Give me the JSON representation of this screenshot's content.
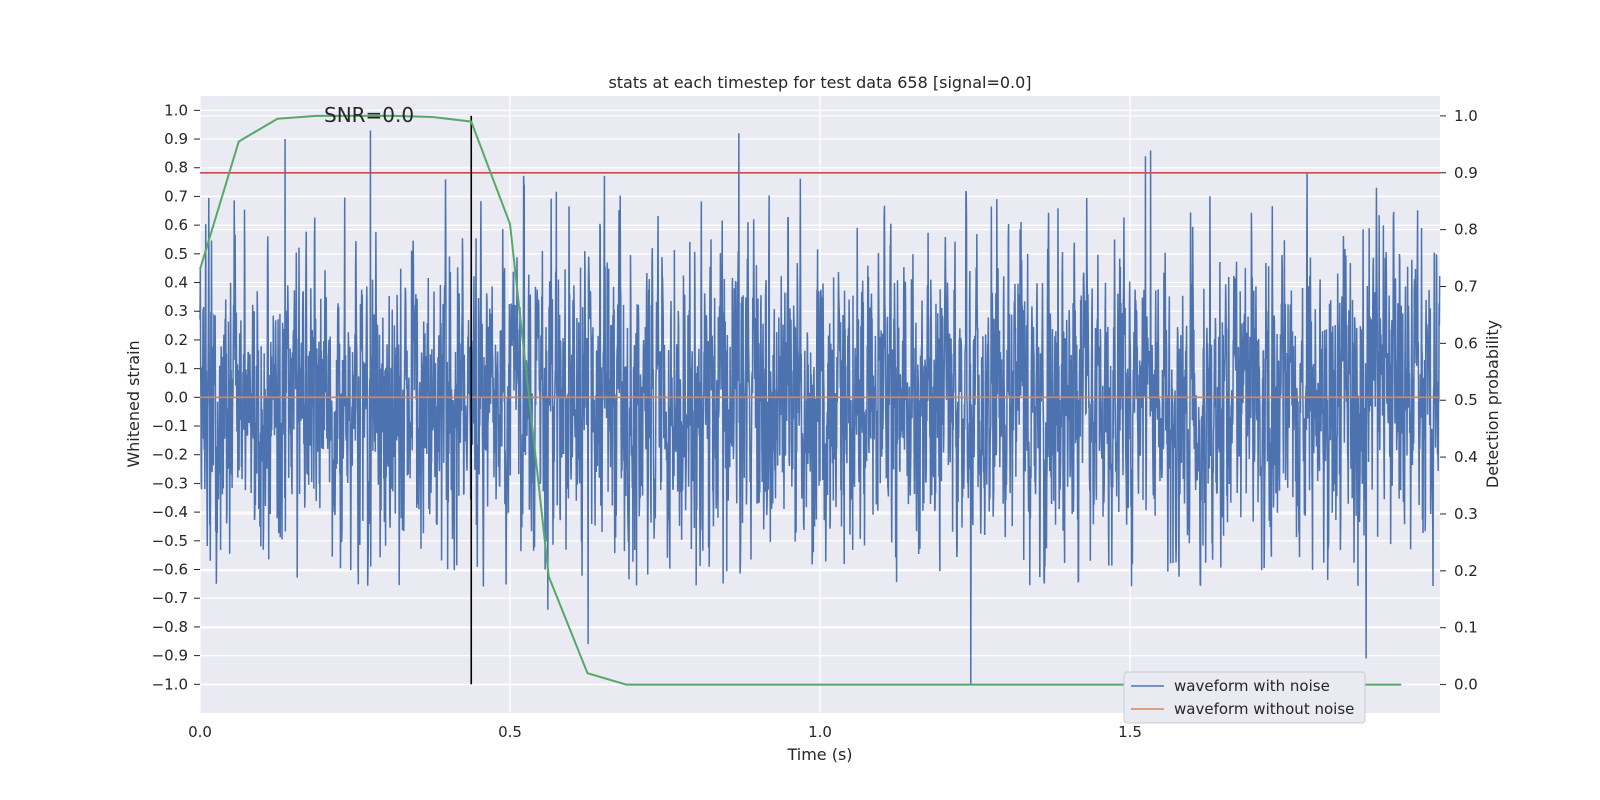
{
  "chart_data": {
    "type": "line",
    "title": "stats at each timestep for test data 658 [signal=0.0]",
    "xlabel": "Time (s)",
    "ylabel": "Whitened strain",
    "y2label": "Detection probability",
    "xlim": [
      0.0,
      2.0
    ],
    "ylim": [
      -1.1,
      1.05
    ],
    "y2lim": [
      -0.05,
      1.035
    ],
    "xticks": [
      0.0,
      0.5,
      1.0,
      1.5
    ],
    "xtick_labels": [
      "0.0",
      "0.5",
      "1.0",
      "1.5"
    ],
    "yticks": [
      1.0,
      0.9,
      0.8,
      0.7,
      0.6,
      0.5,
      0.4,
      0.3,
      0.2,
      0.1,
      0.0,
      -0.1,
      -0.2,
      -0.3,
      -0.4,
      -0.5,
      -0.6,
      -0.7,
      -0.8,
      -0.9,
      -1.0
    ],
    "ytick_labels": [
      "1.0",
      "0.9",
      "0.8",
      "0.7",
      "0.6",
      "0.5",
      "0.4",
      "0.3",
      "0.2",
      "0.1",
      "0.0",
      "−0.1",
      "−0.2",
      "−0.3",
      "−0.4",
      "−0.5",
      "−0.6",
      "−0.7",
      "−0.8",
      "−0.9",
      "−1.0"
    ],
    "y2ticks": [
      1.0,
      0.9,
      0.8,
      0.7,
      0.6,
      0.5,
      0.4,
      0.3,
      0.2,
      0.1,
      0.0
    ],
    "y2tick_labels": [
      "1.0",
      "0.9",
      "0.8",
      "0.7",
      "0.6",
      "0.5",
      "0.4",
      "0.3",
      "0.2",
      "0.1",
      "0.0"
    ],
    "annotation": "SNR=0.0",
    "annotation_at": {
      "x": 0.2,
      "y": 0.96
    },
    "series": [
      {
        "name": "waveform with noise",
        "color": "#4c72b0",
        "axis": "left",
        "sample_rate_hz": 2048,
        "seed": 658,
        "noise_std": 0.26,
        "spikes": [
          {
            "t": 0.275,
            "v": 0.93
          },
          {
            "t": 0.137,
            "v": 0.9
          },
          {
            "t": 0.869,
            "v": 0.92
          },
          {
            "t": 1.533,
            "v": 0.86
          },
          {
            "t": 1.243,
            "v": -1.0
          },
          {
            "t": 1.881,
            "v": -0.91
          },
          {
            "t": 0.626,
            "v": -0.86
          },
          {
            "t": 0.561,
            "v": -0.74
          },
          {
            "t": 1.525,
            "v": 0.84
          }
        ]
      },
      {
        "name": "waveform without noise",
        "color": "#dd8452",
        "axis": "left",
        "x": [
          0.0,
          2.0
        ],
        "y": [
          0.0,
          0.0
        ]
      },
      {
        "name": "detection probability",
        "color": "#55a868",
        "axis": "right",
        "x": [
          0.0,
          0.0625,
          0.125,
          0.1875,
          0.25,
          0.3125,
          0.375,
          0.4375,
          0.5,
          0.5625,
          0.625,
          0.6875,
          0.75,
          0.8125,
          0.875,
          0.9375,
          1.0,
          1.0625,
          1.125,
          1.1875,
          1.25,
          1.3125,
          1.375,
          1.4375,
          1.5,
          1.5625,
          1.625,
          1.6875,
          1.75,
          1.8125,
          1.875,
          1.9375
        ],
        "y": [
          0.73,
          0.955,
          0.995,
          1.0,
          1.0,
          1.0,
          0.998,
          0.99,
          0.81,
          0.19,
          0.02,
          0.0,
          0.0,
          0.0,
          0.0,
          0.0,
          0.0,
          0.0,
          0.0,
          0.0,
          0.0,
          0.0,
          0.0,
          0.0,
          0.0,
          0.0,
          0.0,
          0.0,
          0.0,
          0.0,
          0.0,
          0.0
        ]
      }
    ],
    "threshold": {
      "axis": "right",
      "value": 0.9,
      "color": "#c44e52"
    },
    "marker": {
      "x": 0.4375,
      "y_from": -1.0,
      "y_to": 1.0,
      "color": "#000000"
    },
    "legend": {
      "placement": "lower-right",
      "entries": [
        {
          "label": "waveform with noise",
          "color": "#4c72b0"
        },
        {
          "label": "waveform without noise",
          "color": "#dd8452"
        }
      ]
    },
    "background": "#eaeaf2",
    "grid": true
  }
}
